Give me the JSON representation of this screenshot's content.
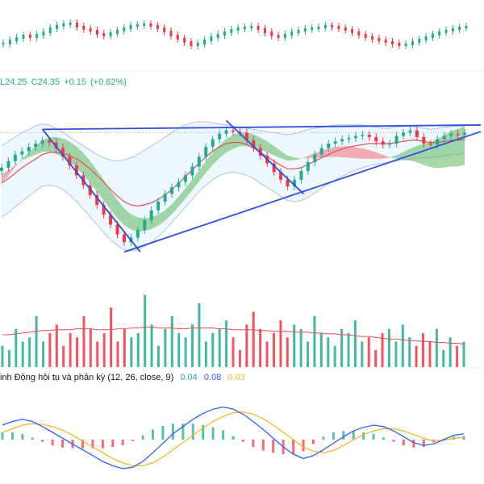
{
  "ohlc": {
    "low": "L24.25",
    "close": "C24.35",
    "change": "+0.15",
    "change_pct": "(+0.62%)"
  },
  "macd": {
    "label": "inh Động hội tụ và phân kỳ",
    "params": "(12, 26, close, 9)",
    "hist": "0.04",
    "macd": "0.08",
    "signal": "0.03"
  },
  "colors": {
    "up": "#22ab94",
    "down": "#f23645",
    "cloud_green": "#5cb85c",
    "cloud_red": "#f26d78",
    "bollinger_fill": "#e3f2fd",
    "bollinger_line": "#b0c4de",
    "moving_average": "#e8504f",
    "trendline": "#2f4fe0",
    "macd_line": "#2962ff",
    "signal_line": "#f7b627",
    "volume_ma": "#e8504f",
    "price_line": "#b0b6c1"
  },
  "chart_data": [
    {
      "type": "line",
      "name": "top-strip",
      "series": [
        {
          "values": [
            54,
            50,
            47,
            44,
            46,
            43,
            40,
            35,
            32,
            30,
            29,
            33,
            36,
            38,
            42,
            44,
            41,
            38,
            35,
            32,
            31,
            30,
            32,
            35,
            39,
            44,
            48,
            52,
            56,
            54,
            50,
            46,
            43,
            40,
            37,
            35,
            34,
            33,
            36,
            40,
            44,
            46,
            43,
            40,
            38,
            36,
            35,
            34,
            32,
            33,
            35,
            37,
            40,
            43,
            46,
            48,
            50,
            52,
            54,
            56,
            55,
            52,
            49,
            46,
            43,
            40,
            38,
            36,
            34,
            33
          ]
        }
      ]
    },
    {
      "type": "line",
      "name": "price",
      "series": [
        {
          "name": "close",
          "values": [
            14,
            14.6,
            15.2,
            15.5,
            15.9,
            16.2,
            16.5,
            16.3,
            15.8,
            15,
            14.2,
            13.3,
            12.4,
            11.5,
            10.6,
            9.7,
            8.8,
            7.9,
            7.2,
            7.6,
            8.3,
            9.2,
            10.1,
            10.9,
            11.6,
            12.2,
            12.7,
            13.3,
            14.1,
            15,
            15.9,
            16.6,
            17.1,
            17.4,
            17.3,
            17.2,
            16.5,
            15.8,
            15.1,
            14.4,
            13.6,
            12.9,
            12.3,
            12.9,
            13.7,
            14.5,
            15.2,
            15.8,
            16.2,
            16.4,
            16.6,
            16.7,
            16.9,
            17,
            16.8,
            16.4,
            16.1,
            16.2,
            16.9,
            17.2,
            17.4,
            16.8,
            16.2,
            16.1,
            16.6,
            16.9,
            17.1,
            17,
            17.2
          ]
        },
        {
          "name": "ma",
          "values": [
            12.6,
            13,
            13.5,
            14,
            14.4,
            14.8,
            15.2,
            15.4,
            15.4,
            15.3,
            15.1,
            14.8,
            14.4,
            13.9,
            13.3,
            12.7,
            12,
            11.4,
            10.9,
            10.6,
            10.5,
            10.6,
            10.8,
            11.1,
            11.5,
            12,
            12.6,
            13.2,
            13.8,
            14.4,
            15,
            15.5,
            15.9,
            16.2,
            16.3,
            16.3,
            16.1,
            15.8,
            15.4,
            15,
            14.6,
            14.2,
            13.9,
            13.9,
            14,
            14.3,
            14.6,
            14.9,
            15.2,
            15.5,
            15.7,
            15.9,
            16,
            16.1,
            16.2,
            16.2,
            16.2,
            16.2,
            16.3,
            16.4,
            16.5,
            16.5,
            16.4,
            16.3,
            16.3,
            16.4,
            16.5,
            16.5,
            16.6
          ]
        },
        {
          "name": "bollinger-upper",
          "values": [
            16,
            16.4,
            16.8,
            17.2,
            17.5,
            17.8,
            18,
            17.9,
            17.6,
            17.2,
            16.8,
            16.4,
            16,
            15.6,
            15.2,
            14.9,
            14.7,
            14.6,
            14.7,
            14.9,
            15.2,
            15.6,
            16,
            16.4,
            16.8,
            17.2,
            17.6,
            17.9,
            18.1,
            18.2,
            18.2,
            18.1,
            18,
            17.9,
            17.8,
            17.7,
            17.6,
            17.5,
            17.4,
            17.3,
            17.2,
            17.1,
            17,
            17.1,
            17.3,
            17.5,
            17.6,
            17.7,
            17.8,
            17.9,
            17.9,
            17.9,
            17.9,
            17.9,
            17.8,
            17.7,
            17.6,
            17.6,
            17.7,
            17.8,
            17.8,
            17.7,
            17.6,
            17.5,
            17.6,
            17.7,
            17.8,
            17.8,
            17.8
          ]
        },
        {
          "name": "bollinger-lower",
          "values": [
            9.5,
            9.9,
            10.4,
            10.9,
            11.4,
            11.9,
            12.3,
            12.4,
            12.3,
            12,
            11.5,
            10.9,
            10.2,
            9.5,
            8.8,
            8.1,
            7.4,
            6.9,
            6.5,
            6.4,
            6.5,
            6.8,
            7.2,
            7.7,
            8.3,
            9,
            9.7,
            10.4,
            11.1,
            11.8,
            12.4,
            12.9,
            13.3,
            13.5,
            13.6,
            13.5,
            13.3,
            13,
            12.6,
            12.2,
            11.8,
            11.4,
            11,
            10.9,
            11,
            11.3,
            11.7,
            12.1,
            12.5,
            12.9,
            13.2,
            13.5,
            13.8,
            14,
            14.2,
            14.3,
            14.4,
            14.5,
            14.6,
            14.7,
            14.8,
            14.9,
            14.9,
            14.9,
            15,
            15.1,
            15.2,
            15.2,
            15.3
          ]
        }
      ],
      "annotations": [
        "symmetrical triangle trendlines",
        "ichimoku cloud"
      ]
    },
    {
      "type": "bar",
      "name": "volume",
      "values": [
        25,
        20,
        45,
        30,
        35,
        60,
        30,
        40,
        50,
        25,
        40,
        35,
        60,
        45,
        30,
        40,
        70,
        30,
        45,
        35,
        40,
        85,
        50,
        25,
        45,
        60,
        40,
        35,
        50,
        75,
        30,
        40,
        45,
        55,
        35,
        20,
        50,
        65,
        45,
        30,
        40,
        55,
        35,
        50,
        45,
        30,
        60,
        40,
        35,
        25,
        45,
        40,
        55,
        30,
        35,
        20,
        40,
        45,
        30,
        50,
        35,
        25,
        40,
        30,
        45,
        20,
        35,
        25,
        30
      ],
      "moving_average": [
        38,
        38,
        39,
        40,
        41,
        42,
        43,
        43,
        44,
        44,
        44,
        45,
        45,
        45,
        44,
        44,
        44,
        45,
        45,
        46,
        46,
        47,
        47,
        46,
        46,
        46,
        45,
        45,
        46,
        46,
        46,
        46,
        45,
        45,
        44,
        44,
        44,
        44,
        43,
        43,
        42,
        42,
        42,
        41,
        41,
        41,
        40,
        40,
        39,
        39,
        38,
        38,
        37,
        36,
        36,
        35,
        34,
        33,
        33,
        32,
        31,
        31,
        30,
        30,
        29,
        29,
        28,
        28,
        27
      ]
    },
    {
      "type": "line",
      "name": "macd",
      "series": [
        {
          "name": "macd",
          "values": [
            0.2,
            0.25,
            0.28,
            0.25,
            0.18,
            0.1,
            0.02,
            -0.06,
            -0.14,
            -0.22,
            -0.3,
            -0.36,
            -0.4,
            -0.38,
            -0.3,
            -0.18,
            -0.05,
            0.08,
            0.18,
            0.28,
            0.36,
            0.42,
            0.45,
            0.42,
            0.35,
            0.25,
            0.14,
            0.02,
            -0.1,
            -0.2,
            -0.26,
            -0.22,
            -0.14,
            -0.05,
            0.04,
            0.12,
            0.17,
            0.2,
            0.18,
            0.12,
            0.04,
            -0.04,
            -0.08,
            -0.06,
            0,
            0.06,
            0.08
          ]
        },
        {
          "name": "signal",
          "values": [
            0.1,
            0.15,
            0.2,
            0.22,
            0.21,
            0.18,
            0.13,
            0.06,
            -0.02,
            -0.1,
            -0.18,
            -0.26,
            -0.32,
            -0.36,
            -0.36,
            -0.32,
            -0.24,
            -0.14,
            -0.04,
            0.06,
            0.16,
            0.25,
            0.32,
            0.37,
            0.38,
            0.35,
            0.29,
            0.2,
            0.1,
            0,
            -0.1,
            -0.16,
            -0.18,
            -0.15,
            -0.08,
            0,
            0.07,
            0.12,
            0.15,
            0.15,
            0.12,
            0.07,
            0.02,
            -0.02,
            -0.01,
            0.02,
            0.03
          ]
        }
      ]
    }
  ]
}
